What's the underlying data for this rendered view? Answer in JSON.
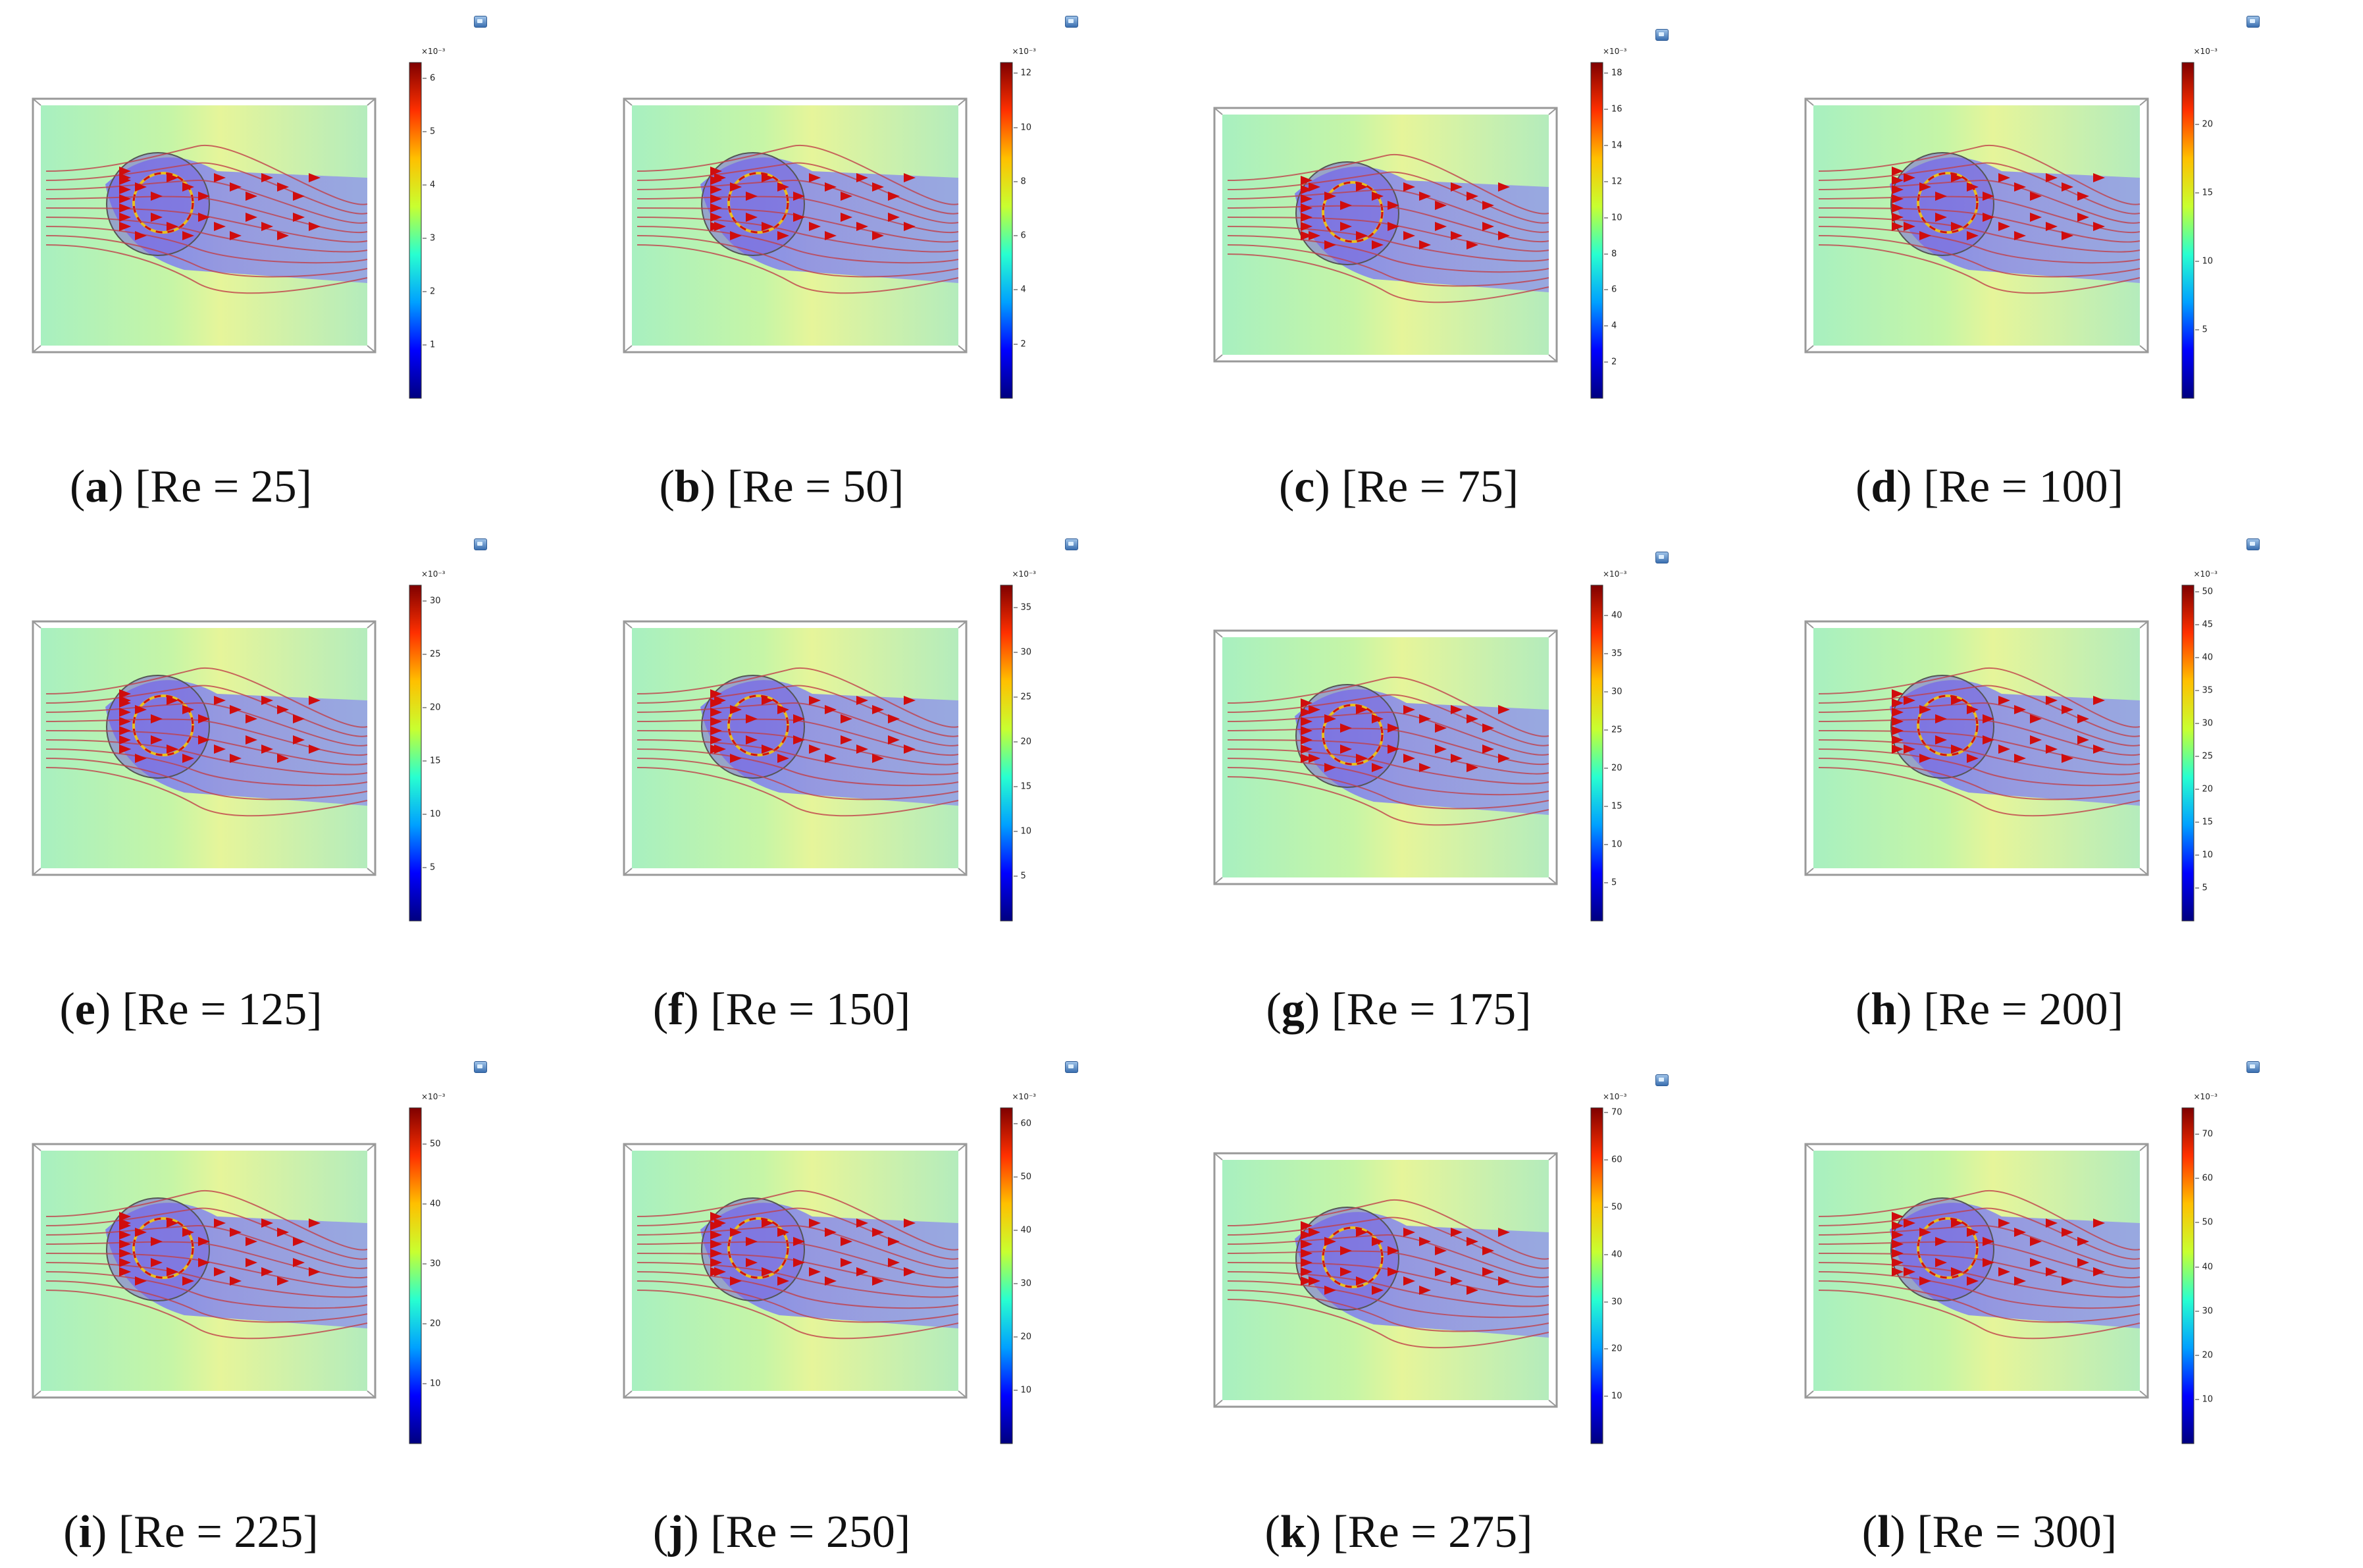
{
  "figure": {
    "panels": [
      {
        "letter": "a",
        "re_label": "[Re = 25]",
        "exponent": "×10⁻³",
        "ticks": [
          "6",
          "5",
          "4",
          "3",
          "2",
          "1"
        ],
        "max": 6.3
      },
      {
        "letter": "b",
        "re_label": "[Re = 50]",
        "exponent": "×10⁻³",
        "ticks": [
          "12",
          "10",
          "8",
          "6",
          "4",
          "2"
        ],
        "max": 12.4
      },
      {
        "letter": "c",
        "re_label": "[Re = 75]",
        "exponent": "×10⁻³",
        "ticks": [
          "18",
          "16",
          "14",
          "12",
          "10",
          "8",
          "6",
          "4",
          "2"
        ],
        "max": 18.6
      },
      {
        "letter": "d",
        "re_label": "[Re = 100]",
        "exponent": "×10⁻³",
        "ticks": [
          "20",
          "15",
          "10",
          "5"
        ],
        "max": 24.5
      },
      {
        "letter": "e",
        "re_label": "[Re = 125]",
        "exponent": "×10⁻³",
        "ticks": [
          "30",
          "25",
          "20",
          "15",
          "10",
          "5"
        ],
        "max": 31.5
      },
      {
        "letter": "f",
        "re_label": "[Re = 150]",
        "exponent": "×10⁻³",
        "ticks": [
          "35",
          "30",
          "25",
          "20",
          "15",
          "10",
          "5"
        ],
        "max": 37.5
      },
      {
        "letter": "g",
        "re_label": "[Re = 175]",
        "exponent": "×10⁻³",
        "ticks": [
          "40",
          "35",
          "30",
          "25",
          "20",
          "15",
          "10",
          "5"
        ],
        "max": 44
      },
      {
        "letter": "h",
        "re_label": "[Re = 200]",
        "exponent": "×10⁻³",
        "ticks": [
          "50",
          "45",
          "40",
          "35",
          "30",
          "25",
          "20",
          "15",
          "10",
          "5"
        ],
        "max": 51
      },
      {
        "letter": "i",
        "re_label": "[Re = 225]",
        "exponent": "×10⁻³",
        "ticks": [
          "50",
          "40",
          "30",
          "20",
          "10"
        ],
        "max": 56
      },
      {
        "letter": "j",
        "re_label": "[Re = 250]",
        "exponent": "×10⁻³",
        "ticks": [
          "60",
          "50",
          "40",
          "30",
          "20",
          "10"
        ],
        "max": 63
      },
      {
        "letter": "k",
        "re_label": "[Re = 275]",
        "exponent": "×10⁻³",
        "ticks": [
          "70",
          "60",
          "50",
          "40",
          "30",
          "20",
          "10"
        ],
        "max": 71
      },
      {
        "letter": "l",
        "re_label": "[Re = 300]",
        "exponent": "×10⁻³",
        "ticks": [
          "70",
          "60",
          "50",
          "40",
          "30",
          "20",
          "10"
        ],
        "max": 76
      }
    ]
  }
}
